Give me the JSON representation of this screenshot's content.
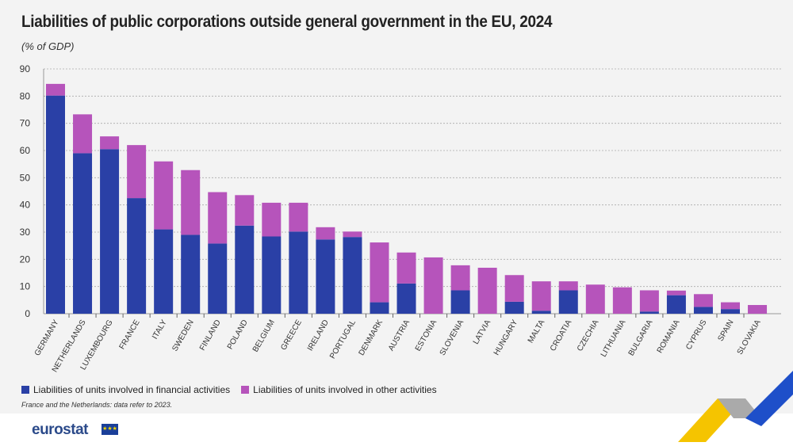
{
  "chart_data": {
    "type": "bar",
    "stacked": true,
    "title": "Liabilities of public corporations outside general government in the EU, 2024",
    "ylabel": "(% of GDP)",
    "ylim": [
      0,
      90
    ],
    "yticks": [
      0,
      10,
      20,
      30,
      40,
      50,
      60,
      70,
      80,
      90
    ],
    "grid": true,
    "legend_position": "bottom-left",
    "categories": [
      "GERMANY",
      "NETHERLANDS",
      "LUXEMBOURG",
      "FRANCE",
      "ITALY",
      "SWEDEN",
      "FINLAND",
      "POLAND",
      "BELGIUM",
      "GREECE",
      "IRELAND",
      "PORTUGAL",
      "DENMARK",
      "AUSTRIA",
      "ESTONIA",
      "SLOVENIA",
      "LATVIA",
      "HUNGARY",
      "MALTA",
      "CROATIA",
      "CZECHIA",
      "LITHUANIA",
      "BULGARIA",
      "ROMANIA",
      "CYPRUS",
      "SPAIN",
      "SLOVAKIA"
    ],
    "series": [
      {
        "name": "Liabilities of units involved in financial activities",
        "color": "#2a40a6",
        "values": [
          80.2,
          59.0,
          60.5,
          42.5,
          31.0,
          29.0,
          25.8,
          32.4,
          28.4,
          30.2,
          27.3,
          28.2,
          4.2,
          11.1,
          0,
          8.6,
          0,
          4.4,
          1.1,
          8.6,
          0,
          0,
          0.8,
          6.8,
          2.5,
          1.7,
          0
        ]
      },
      {
        "name": "Liabilities of units involved in other activities",
        "color": "#b654bb",
        "values": [
          4.3,
          14.3,
          4.7,
          19.5,
          25.0,
          23.8,
          18.9,
          11.2,
          12.4,
          10.6,
          4.5,
          2.0,
          22.0,
          11.4,
          20.7,
          9.2,
          16.9,
          9.8,
          10.8,
          3.3,
          10.7,
          9.7,
          7.8,
          1.7,
          4.7,
          2.5,
          3.2
        ]
      }
    ],
    "note": "France and the Netherlands: data refer to 2023."
  },
  "branding": {
    "logo": "eurostat"
  }
}
